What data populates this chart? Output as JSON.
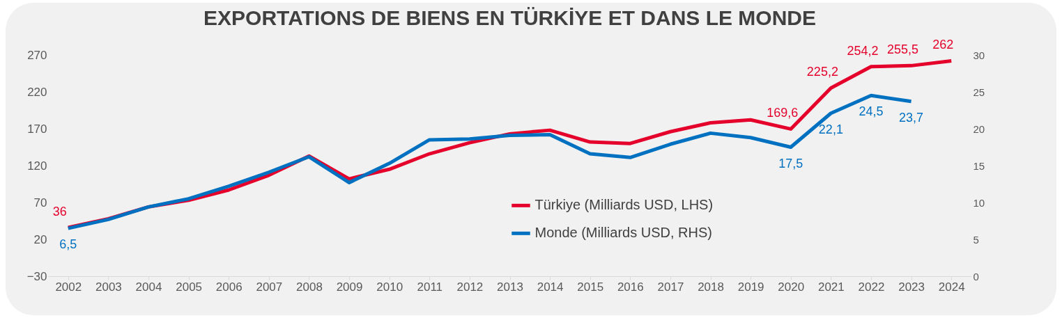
{
  "chart_data": {
    "type": "line",
    "title": "EXPORTATIONS DE BIENS EN TÜRKİYE ET DANS LE MONDE",
    "categories": [
      "2002",
      "2003",
      "2004",
      "2005",
      "2006",
      "2007",
      "2008",
      "2009",
      "2010",
      "2011",
      "2012",
      "2013",
      "2014",
      "2015",
      "2016",
      "2017",
      "2018",
      "2019",
      "2020",
      "2021",
      "2022",
      "2023",
      "2024"
    ],
    "series": [
      {
        "name": "Türkiye (Milliards USD, LHS)",
        "color": "#e4002b",
        "values": [
          36,
          48,
          64,
          73,
          87,
          107,
          133,
          102,
          115,
          136,
          151,
          163,
          168,
          152,
          150,
          166,
          178,
          182,
          169.6,
          225.2,
          254.2,
          255.5,
          262
        ],
        "value_labels": [
          "36",
          null,
          null,
          null,
          null,
          null,
          null,
          null,
          null,
          null,
          null,
          null,
          null,
          null,
          null,
          null,
          null,
          null,
          "169,6",
          "225,2",
          "254,2",
          "255,5",
          "262"
        ]
      },
      {
        "name": "Monde (Milliards USD, RHS)",
        "color": "#0070c0",
        "axis": "y2",
        "values": [
          6.5,
          7.7,
          9.4,
          10.5,
          12.2,
          14.1,
          16.2,
          12.7,
          15.3,
          18.5,
          18.6,
          19.1,
          19.2,
          16.6,
          16.1,
          17.9,
          19.4,
          18.8,
          17.5,
          22.1,
          24.5,
          23.7,
          null
        ],
        "value_labels": [
          "6,5",
          null,
          null,
          null,
          null,
          null,
          null,
          null,
          null,
          null,
          null,
          null,
          null,
          null,
          null,
          null,
          null,
          null,
          "17,5",
          "22,1",
          "24,5",
          "23,7",
          null
        ]
      }
    ],
    "ylim": [
      -30,
      270
    ],
    "yticks": [
      -30,
      20,
      70,
      120,
      170,
      220,
      270
    ],
    "y2lim": [
      0,
      30
    ],
    "y2ticks": [
      0,
      5,
      10,
      15,
      20,
      25,
      30
    ],
    "grid": false,
    "legend": "bottom",
    "line_style": "solid",
    "marker": "none"
  }
}
